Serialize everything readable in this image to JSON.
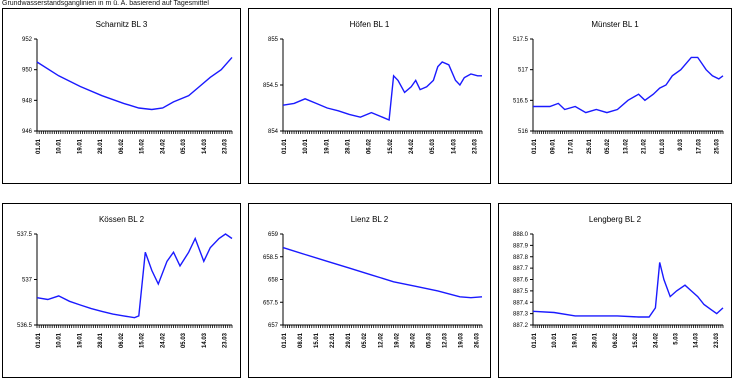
{
  "header": {
    "text": "Grundwasserstandsganglinien in m ü. A. basierend auf Tagesmittel"
  },
  "colors": {
    "line": "#1a1aff",
    "frame": "#000000"
  },
  "chart_data": [
    {
      "type": "line",
      "title": "Scharnitz BL 3",
      "ylim": [
        946,
        952
      ],
      "yticks": [
        "946",
        "948",
        "950",
        "952"
      ],
      "xticks": [
        "01.01",
        "10.01",
        "19.01",
        "28.01",
        "06.02",
        "15.02",
        "24.02",
        "05.03",
        "14.03",
        "23.03"
      ],
      "xlim": [
        0,
        90
      ],
      "x": [
        0,
        10,
        20,
        30,
        40,
        47,
        53,
        58,
        63,
        70,
        75,
        80,
        85,
        90
      ],
      "y": [
        950.5,
        949.6,
        948.9,
        948.3,
        947.8,
        947.5,
        947.4,
        947.5,
        947.9,
        948.3,
        948.9,
        949.5,
        950.0,
        950.8
      ]
    },
    {
      "type": "line",
      "title": "Höfen BL 1",
      "ylim": [
        854,
        855
      ],
      "yticks": [
        "854",
        "854.5",
        "855"
      ],
      "xticks": [
        "01.01",
        "10.01",
        "19.01",
        "28.01",
        "06.02",
        "15.02",
        "24.02",
        "05.03",
        "14.03",
        "23.03"
      ],
      "xlim": [
        0,
        90
      ],
      "x": [
        0,
        5,
        10,
        15,
        20,
        25,
        30,
        35,
        40,
        45,
        48,
        50,
        52,
        55,
        58,
        60,
        62,
        65,
        68,
        70,
        72,
        75,
        78,
        80,
        82,
        85,
        88,
        90
      ],
      "y": [
        854.28,
        854.3,
        854.35,
        854.3,
        854.25,
        854.22,
        854.18,
        854.15,
        854.2,
        854.15,
        854.12,
        854.6,
        854.55,
        854.42,
        854.48,
        854.55,
        854.45,
        854.48,
        854.55,
        854.7,
        854.75,
        854.72,
        854.55,
        854.5,
        854.58,
        854.62,
        854.6,
        854.6
      ]
    },
    {
      "type": "line",
      "title": "Münster BL 1",
      "ylim": [
        516,
        517.5
      ],
      "yticks": [
        "516",
        "516.5",
        "517",
        "517.5"
      ],
      "xticks": [
        "01.01",
        "09.01",
        "17.01",
        "25.01",
        "05.02",
        "13.02",
        "21.02",
        "01.03",
        "9.03",
        "17.03",
        "25.03"
      ],
      "xlim": [
        0,
        90
      ],
      "x": [
        0,
        8,
        12,
        15,
        20,
        25,
        30,
        35,
        40,
        45,
        50,
        53,
        57,
        60,
        63,
        66,
        70,
        75,
        78,
        80,
        82,
        85,
        88,
        90
      ],
      "y": [
        516.4,
        516.4,
        516.45,
        516.35,
        516.4,
        516.3,
        516.35,
        516.3,
        516.35,
        516.5,
        516.6,
        516.5,
        516.6,
        516.7,
        516.75,
        516.9,
        517.0,
        517.2,
        517.2,
        517.1,
        517.0,
        516.9,
        516.85,
        516.9
      ]
    },
    {
      "type": "line",
      "title": "Kössen BL 2",
      "ylim": [
        536.5,
        537.5
      ],
      "yticks": [
        "536.5",
        "537",
        "537.5"
      ],
      "xticks": [
        "01.01",
        "10.01",
        "19.01",
        "28.01",
        "06.02",
        "15.02",
        "24.02",
        "05.03",
        "14.03",
        "23.03"
      ],
      "xlim": [
        0,
        90
      ],
      "x": [
        0,
        5,
        10,
        15,
        20,
        25,
        30,
        35,
        40,
        45,
        47,
        50,
        53,
        56,
        60,
        63,
        66,
        70,
        73,
        77,
        80,
        84,
        87,
        90
      ],
      "y": [
        536.8,
        536.78,
        536.82,
        536.76,
        536.72,
        536.68,
        536.65,
        536.62,
        536.6,
        536.58,
        536.6,
        537.3,
        537.1,
        536.95,
        537.2,
        537.3,
        537.15,
        537.3,
        537.45,
        537.2,
        537.35,
        537.45,
        537.5,
        537.45
      ]
    },
    {
      "type": "line",
      "title": "Lienz BL 2",
      "ylim": [
        657,
        659
      ],
      "yticks": [
        "657",
        "657.5",
        "658",
        "658.5",
        "659"
      ],
      "xticks": [
        "01.01",
        "08.01",
        "15.01",
        "22.01",
        "29.01",
        "05.02",
        "12.02",
        "19.02",
        "26.02",
        "05.03",
        "12.03",
        "19.03",
        "26.03"
      ],
      "xlim": [
        0,
        90
      ],
      "x": [
        0,
        10,
        20,
        30,
        40,
        50,
        60,
        70,
        80,
        85,
        90
      ],
      "y": [
        658.7,
        658.55,
        658.4,
        658.25,
        658.1,
        657.95,
        657.85,
        657.75,
        657.62,
        657.6,
        657.62
      ]
    },
    {
      "type": "line",
      "title": "Lengberg BL 2",
      "ylim": [
        887.2,
        888.0
      ],
      "yticks": [
        "887.2",
        "887.3",
        "887.4",
        "887.5",
        "887.6",
        "887.7",
        "887.8",
        "887.9",
        "888.0"
      ],
      "xticks": [
        "01.01",
        "10.01",
        "19.01",
        "28.01",
        "06.02",
        "15.02",
        "24.02",
        "5.03",
        "14.03",
        "23.03"
      ],
      "xlim": [
        0,
        90
      ],
      "x": [
        0,
        10,
        20,
        30,
        40,
        50,
        55,
        58,
        60,
        62,
        65,
        68,
        72,
        75,
        78,
        81,
        84,
        87,
        90
      ],
      "y": [
        887.32,
        887.31,
        887.28,
        887.28,
        887.28,
        887.27,
        887.27,
        887.35,
        887.75,
        887.6,
        887.45,
        887.5,
        887.55,
        887.5,
        887.45,
        887.38,
        887.34,
        887.3,
        887.35
      ]
    }
  ]
}
